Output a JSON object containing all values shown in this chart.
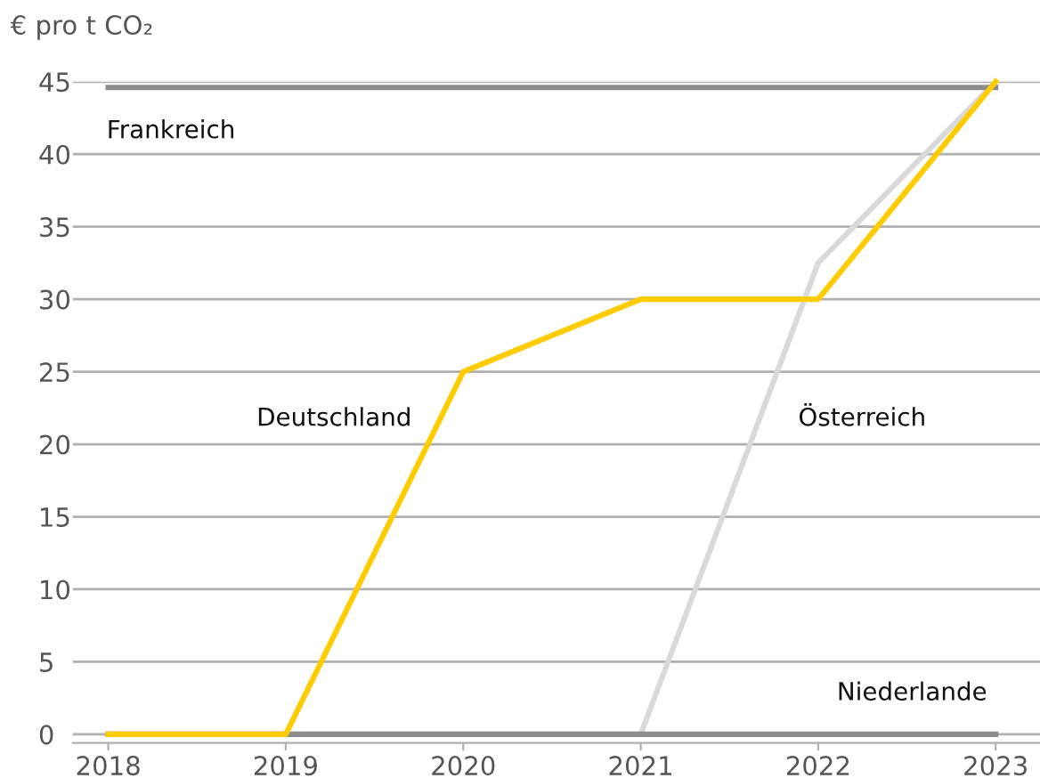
{
  "chart_data": {
    "type": "line",
    "ylabel": "€ pro t CO₂",
    "x": [
      2018,
      2019,
      2020,
      2021,
      2022,
      2023
    ],
    "series": [
      {
        "name": "Österreich",
        "color": "#d9d9d9",
        "values": [
          0,
          0,
          0,
          0,
          32.5,
          45
        ]
      },
      {
        "name": "Frankreich",
        "color": "#8c8c8c",
        "values": [
          44.6,
          44.6,
          44.6,
          44.6,
          44.6,
          44.6
        ]
      },
      {
        "name": "Niederlande",
        "color": "#8c8c8c",
        "values": [
          0,
          0,
          0,
          0,
          0,
          0
        ]
      },
      {
        "name": "Deutschland",
        "color": "#ffcc00",
        "values": [
          0,
          0,
          25,
          30,
          30,
          45
        ]
      }
    ],
    "xlim": [
      2017.8,
      2023.25
    ],
    "xticks": [
      2018,
      2019,
      2020,
      2021,
      2022,
      2023
    ],
    "ylim": [
      -0.6,
      45
    ],
    "yticks": [
      0,
      5,
      10,
      15,
      20,
      25,
      30,
      35,
      40,
      45
    ],
    "grid": "y",
    "legend": false,
    "marker": "none",
    "line_style": "solid"
  }
}
